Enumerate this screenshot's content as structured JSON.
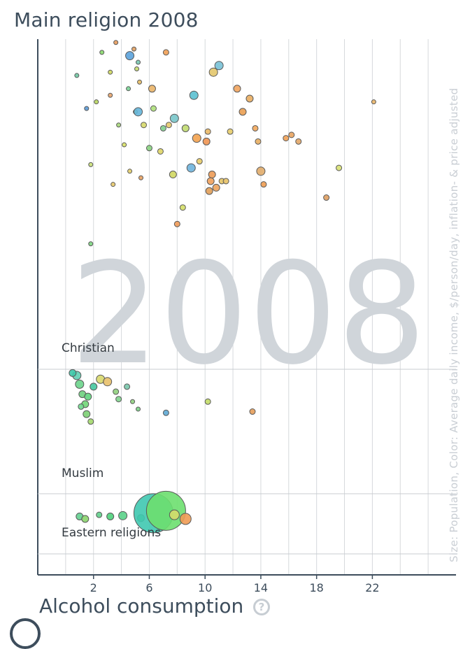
{
  "chart_data": {
    "type": "scatter",
    "title": "Main religion 2008",
    "xlabel": "Alcohol consumption",
    "ylabel": "Size: Population, Color: Average daily income, $/person/day, inflation- & price adjusted",
    "year": "2008",
    "xlim": [
      -2,
      28
    ],
    "xticks": [
      2,
      6,
      10,
      14,
      18,
      22
    ],
    "grid": true,
    "facets": [
      {
        "name": "Christian",
        "points": [
          [
            0.8,
            89
          ],
          [
            1.5,
            79
          ],
          [
            1.8,
            62
          ],
          [
            1.8,
            38
          ],
          [
            2.2,
            81
          ],
          [
            2.6,
            96
          ],
          [
            3.2,
            83
          ],
          [
            3.2,
            90
          ],
          [
            3.4,
            56
          ],
          [
            3.6,
            99
          ],
          [
            3.8,
            74
          ],
          [
            4.2,
            68
          ],
          [
            4.5,
            85
          ],
          [
            4.6,
            60
          ],
          [
            4.9,
            97
          ],
          [
            5.0,
            78
          ],
          [
            5.1,
            91
          ],
          [
            5.2,
            93
          ],
          [
            5.3,
            87
          ],
          [
            5.4,
            58
          ],
          [
            5.6,
            74
          ],
          [
            6.0,
            67
          ],
          [
            6.2,
            85
          ],
          [
            6.3,
            79
          ],
          [
            6.8,
            66
          ],
          [
            7.0,
            73
          ],
          [
            7.2,
            96
          ],
          [
            7.4,
            74
          ],
          [
            7.7,
            59
          ],
          [
            8.0,
            44
          ],
          [
            8.4,
            49
          ],
          [
            8.6,
            73
          ],
          [
            9.4,
            70
          ],
          [
            9.6,
            63
          ],
          [
            10.1,
            69
          ],
          [
            10.2,
            72
          ],
          [
            10.3,
            54
          ],
          [
            10.4,
            57
          ],
          [
            10.5,
            59
          ],
          [
            10.8,
            55
          ],
          [
            11.2,
            57
          ],
          [
            11.5,
            57
          ],
          [
            11.8,
            72
          ],
          [
            12.3,
            85
          ],
          [
            12.7,
            78
          ],
          [
            13.2,
            82
          ],
          [
            13.6,
            73
          ],
          [
            13.8,
            69
          ],
          [
            14.2,
            56
          ],
          [
            15.8,
            70
          ],
          [
            16.2,
            71
          ],
          [
            16.7,
            69
          ],
          [
            18.7,
            52
          ],
          [
            19.6,
            61
          ],
          [
            22.1,
            81
          ],
          [
            5.2,
            78
          ],
          [
            7.8,
            76
          ],
          [
            9.2,
            83
          ],
          [
            10.6,
            90
          ],
          [
            9.0,
            61
          ],
          [
            11.0,
            92
          ],
          [
            4.6,
            95
          ],
          [
            14.0,
            60
          ]
        ],
        "sizes": [
          3,
          3,
          3,
          3,
          3,
          3,
          3,
          3,
          3,
          3,
          3,
          3,
          3,
          3,
          3,
          3,
          3,
          3,
          3,
          3,
          4,
          4,
          5,
          4,
          4,
          4,
          4,
          4,
          5,
          4,
          4,
          5,
          6,
          4,
          5,
          4,
          5,
          5,
          5,
          5,
          4,
          4,
          4,
          5,
          5,
          5,
          4,
          4,
          4,
          4,
          4,
          4,
          4,
          4,
          3,
          6,
          6,
          6,
          6,
          6,
          6,
          6,
          6
        ],
        "colors": [
          "#6fc7a2",
          "#5b9ad6",
          "#c9e077",
          "#7dd681",
          "#b8d65e",
          "#8ad96b",
          "#e7a36a",
          "#cfd85e",
          "#e8c96a",
          "#e79b5b",
          "#a7d77a",
          "#d9e266",
          "#79d395",
          "#e4cf6c",
          "#e1a05f",
          "#9dd57e",
          "#c6dd6e",
          "#77c8b1",
          "#e7bc64",
          "#e9a262",
          "#d6d86a",
          "#88d27f",
          "#eab467",
          "#aee07a",
          "#dfd566",
          "#7fcf8d",
          "#ef9e54",
          "#e6c86a",
          "#d0d761",
          "#ef9a58",
          "#d4de67",
          "#c1dc70",
          "#f3a24f",
          "#e6cb67",
          "#f09552",
          "#e9b865",
          "#e19f58",
          "#f0a05a",
          "#ed9b56",
          "#eca25b",
          "#e5c566",
          "#e8c268",
          "#e7cc69",
          "#f1a45e",
          "#ea9f52",
          "#e9ad60",
          "#f2a75b",
          "#e8ae60",
          "#ee9c51",
          "#efa054",
          "#e9a45f",
          "#e2a667",
          "#df9f60",
          "#d8e173",
          "#e9b467",
          "#65b5d9",
          "#78c5c9",
          "#5bc0d0",
          "#e3c76b",
          "#6eb2dc",
          "#78c1d6",
          "#5aa2db",
          "#e1ac6a"
        ]
      },
      {
        "name": "Muslim",
        "points": [
          [
            0.8,
            95
          ],
          [
            1.0,
            88
          ],
          [
            1.2,
            80
          ],
          [
            1.4,
            72
          ],
          [
            1.5,
            64
          ],
          [
            1.8,
            58
          ],
          [
            2.5,
            92
          ],
          [
            3.0,
            90
          ],
          [
            3.6,
            82
          ],
          [
            3.8,
            76
          ],
          [
            4.4,
            86
          ],
          [
            4.8,
            74
          ],
          [
            5.2,
            68
          ],
          [
            7.2,
            65
          ],
          [
            10.2,
            74
          ],
          [
            13.4,
            66
          ],
          [
            0.5,
            97
          ],
          [
            2.0,
            86
          ],
          [
            1.6,
            78
          ],
          [
            1.1,
            70
          ]
        ],
        "sizes": [
          6,
          6,
          5,
          5,
          5,
          4,
          6,
          6,
          4,
          4,
          4,
          3,
          3,
          4,
          4,
          4,
          5,
          5,
          5,
          4
        ],
        "colors": [
          "#5fcfb2",
          "#6bd48b",
          "#6ed07e",
          "#70d677",
          "#7ccf73",
          "#a3d86b",
          "#d8d86b",
          "#e8c06a",
          "#8fcf7c",
          "#7fd38c",
          "#78c6ab",
          "#91d381",
          "#7ad285",
          "#5ea8d4",
          "#c2dc66",
          "#e59d5a",
          "#3cc8a8",
          "#45c8a0",
          "#61d37d",
          "#6fd78c"
        ]
      },
      {
        "name": "Eastern religions",
        "points": [
          [
            1.0,
            72
          ],
          [
            1.4,
            69
          ],
          [
            2.4,
            74
          ],
          [
            3.2,
            72
          ],
          [
            4.1,
            73
          ],
          [
            5.4,
            70
          ],
          [
            6.3,
            76
          ],
          [
            7.2,
            79
          ],
          [
            7.8,
            74
          ],
          [
            8.6,
            69
          ]
        ],
        "sizes": [
          5,
          5,
          4,
          5,
          6,
          5,
          28,
          28,
          7,
          8
        ],
        "colors": [
          "#63d090",
          "#8ad46b",
          "#62cf8b",
          "#4fd17c",
          "#5bd18a",
          "#5ad07d",
          "#3fc8b0",
          "#6ddf6f",
          "#d5db6b",
          "#ef9b54"
        ]
      }
    ]
  }
}
